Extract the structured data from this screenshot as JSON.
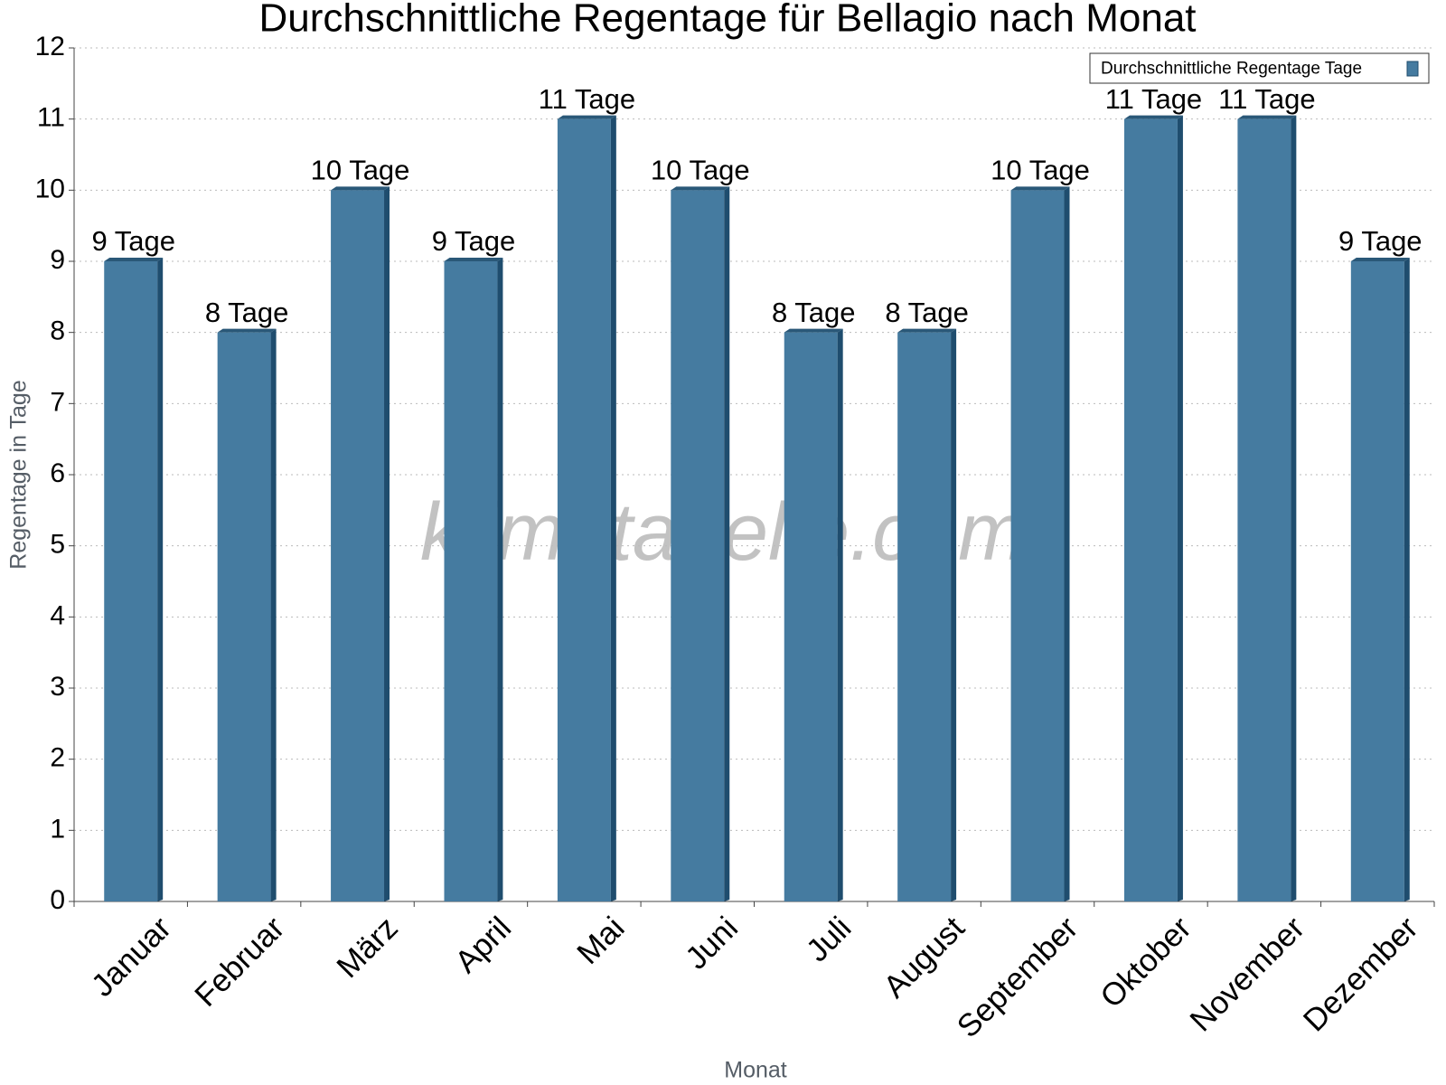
{
  "chart_data": {
    "type": "bar",
    "title": "Durchschnittliche Regentage für Bellagio nach Monat",
    "x_label": "Monat",
    "y_label": "Regentage in Tage",
    "watermark": "klimatabelle.com",
    "categories": [
      "Januar",
      "Februar",
      "März",
      "April",
      "Mai",
      "Juni",
      "Juli",
      "August",
      "September",
      "Oktober",
      "November",
      "Dezember"
    ],
    "series": [
      {
        "name": "Durchschnittliche Regentage Tage",
        "color": "#457ba0",
        "values": [
          9,
          8,
          10,
          9,
          11,
          10,
          8,
          8,
          10,
          11,
          11,
          9
        ],
        "value_labels": [
          "9 Tage",
          "8 Tage",
          "10 Tage",
          "9 Tage",
          "11 Tage",
          "10 Tage",
          "8 Tage",
          "8 Tage",
          "10 Tage",
          "11 Tage",
          "11 Tage",
          "9 Tage"
        ]
      }
    ],
    "ylim": [
      0,
      12
    ],
    "yticks": [
      0,
      1,
      2,
      3,
      4,
      5,
      6,
      7,
      8,
      9,
      10,
      11,
      12
    ],
    "grid": true,
    "legend": "upper right"
  }
}
